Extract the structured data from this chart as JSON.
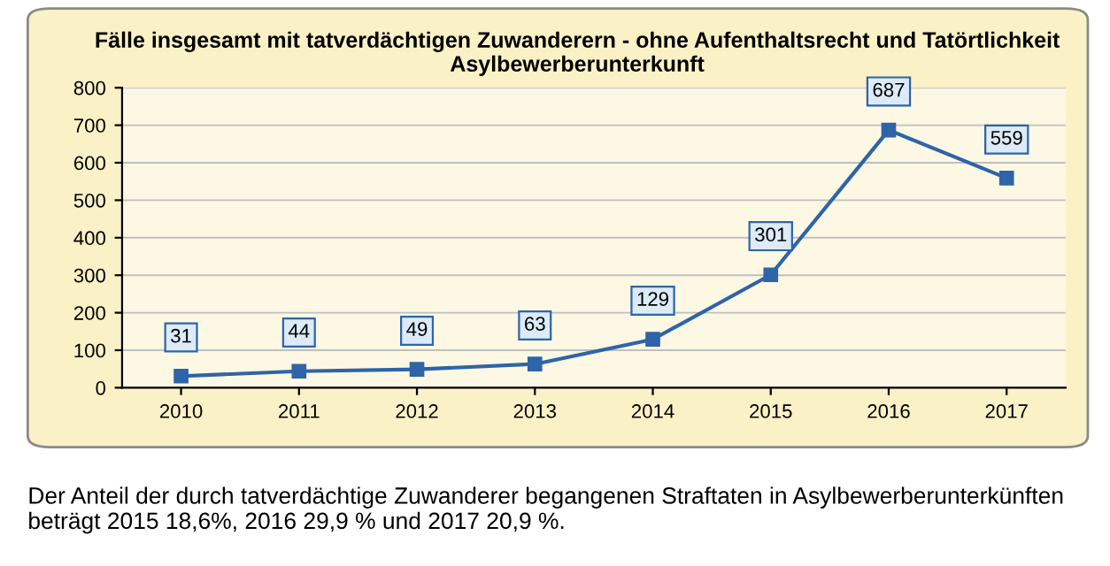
{
  "chart_data": {
    "type": "line",
    "title": "Fälle insgesamt mit tatverdächtigen Zuwanderern - ohne Aufenthaltsrecht und Tatörtlichkeit Asylbewerberunterkunft",
    "categories": [
      "2010",
      "2011",
      "2012",
      "2013",
      "2014",
      "2015",
      "2016",
      "2017"
    ],
    "series": [
      {
        "color": "#2e64a8",
        "values": [
          31,
          44,
          49,
          63,
          129,
          301,
          687,
          559
        ]
      }
    ],
    "ylim": [
      0,
      800
    ],
    "yticks": [
      0,
      100,
      200,
      300,
      400,
      500,
      600,
      700,
      800
    ],
    "grid": "y",
    "marker": "square",
    "line_style": "solid",
    "data_labels": true,
    "annotations": [
      "Der Anteil der durch tatverdächtige Zuwanderer begangenen Straftaten in Asylbewerberunterkünften beträgt 2015 18,6%, 2016 29,9 % und 2017 20,9 %."
    ]
  }
}
